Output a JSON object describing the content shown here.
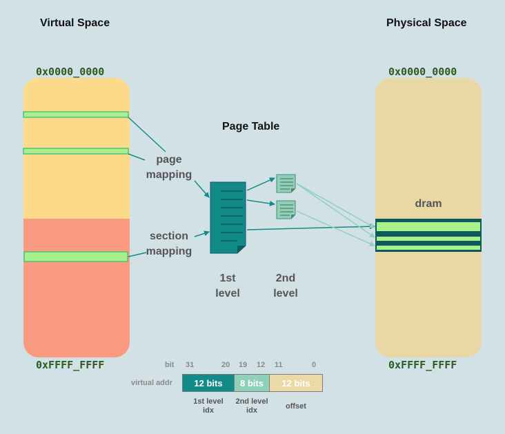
{
  "virtual": {
    "title": "Virtual Space",
    "start_addr": "0x0000_0000",
    "end_addr": "0xFFFF_FFFF"
  },
  "physical": {
    "title": "Physical Space",
    "start_addr": "0x0000_0000",
    "end_addr": "0xFFFF_FFFF",
    "region_label": "dram"
  },
  "page_table": {
    "title": "Page Table",
    "first_level_label": "1st\nlevel",
    "second_level_label": "2nd\nlevel"
  },
  "mapping_labels": {
    "page": "page\nmapping",
    "section": "section\nmapping"
  },
  "bit_layout": {
    "bit_label": "bit",
    "virtual_addr_label": "virtual addr",
    "bit_numbers": [
      "31",
      "20",
      "19",
      "12",
      "11",
      "0"
    ],
    "fields": [
      {
        "text": "12 bits",
        "caption": "1st level\nidx",
        "color": "#138a8a",
        "text_color": "#ffffff"
      },
      {
        "text": "8 bits",
        "caption": "2nd level\nidx",
        "color": "#8fd0b8",
        "text_color": "#ffffff"
      },
      {
        "text": "12 bits",
        "caption": "offset",
        "color": "#ebd9a6",
        "text_color": "#ffffff"
      }
    ]
  },
  "colors": {
    "background": "#d2e1e5",
    "virtual_top": "#fdd98a",
    "virtual_bottom": "#fa9a80",
    "physical": "#e9d8a6",
    "highlight": "#a8f08a",
    "table": "#138a8a",
    "table_dark": "#0d5a5a",
    "arrow_light": "#8fd0c0"
  }
}
